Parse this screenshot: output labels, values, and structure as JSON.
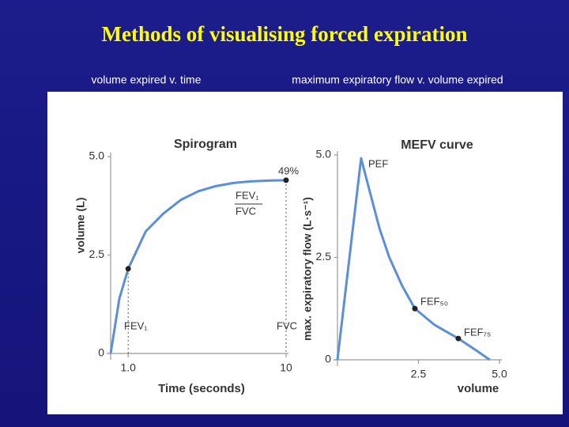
{
  "title": "Methods of visualising forced expiration",
  "chart_data": [
    {
      "type": "line",
      "subtitle": "volume expired v. time",
      "title": "Spirogram",
      "x_label": "Time (seconds)",
      "y_label": "volume (L)",
      "xlim": [
        0,
        10
      ],
      "ylim": [
        0,
        5
      ],
      "xticks": [
        {
          "value": 1,
          "label": "1.0"
        },
        10
      ],
      "yticks": [
        0,
        2.5,
        {
          "value": 5,
          "label": "5.0"
        }
      ],
      "grid": false,
      "series": [
        {
          "color": "#5b8fd6",
          "x": [
            0,
            0.5,
            1,
            2,
            3,
            4,
            5,
            6,
            7,
            8,
            9,
            10
          ],
          "values": [
            0,
            1.4,
            2.15,
            3.1,
            3.55,
            3.9,
            4.12,
            4.25,
            4.33,
            4.37,
            4.39,
            4.4
          ]
        }
      ],
      "markers": {
        "color": "#222222",
        "x": [
          1,
          10
        ],
        "values": [
          2.15,
          4.4
        ]
      },
      "annotations": [
        "49%",
        "FEV₁",
        "FVC",
        "FEV₁",
        "FVC"
      ]
    },
    {
      "type": "line",
      "subtitle": "maximum expiratory flow v. volume expired",
      "title": "MEFV curve",
      "x_label": "volume",
      "y_label": "max. expiratory flow (L·s⁻¹)",
      "xlim": [
        0,
        5
      ],
      "ylim": [
        0,
        5
      ],
      "xticks": [
        2.5,
        {
          "value": 5,
          "label": "5.0"
        }
      ],
      "yticks": [
        0,
        2.5,
        {
          "value": 5,
          "label": "5.0"
        }
      ],
      "grid": false,
      "series": [
        {
          "color": "#5b8fd6",
          "x": [
            0,
            0.73,
            1.0,
            1.3,
            1.6,
            2.0,
            2.39,
            3.0,
            3.73,
            4.3,
            4.7
          ],
          "values": [
            0,
            4.92,
            4.1,
            3.2,
            2.5,
            1.8,
            1.25,
            0.85,
            0.52,
            0.22,
            0
          ]
        }
      ],
      "markers": {
        "color": "#222222",
        "x": [
          2.39,
          3.73
        ],
        "values": [
          1.25,
          0.52
        ]
      },
      "annotations": [
        "PEF",
        "FEF₅₀",
        "FEF₇₅"
      ]
    }
  ]
}
